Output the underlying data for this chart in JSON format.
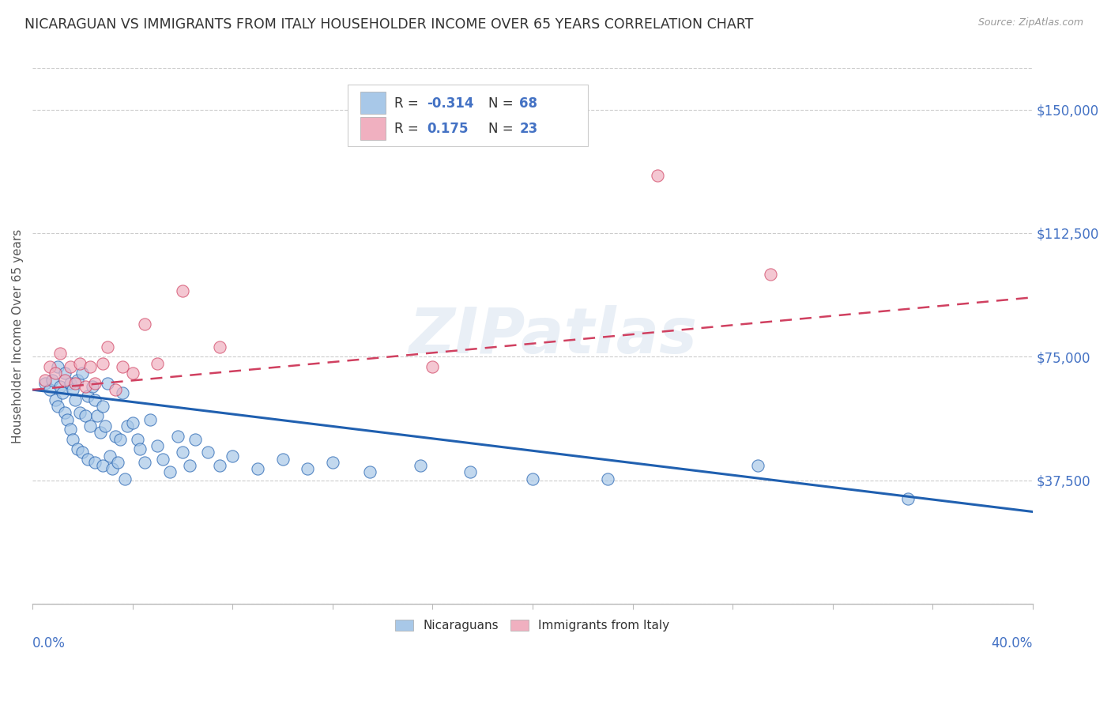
{
  "title": "NICARAGUAN VS IMMIGRANTS FROM ITALY HOUSEHOLDER INCOME OVER 65 YEARS CORRELATION CHART",
  "source": "Source: ZipAtlas.com",
  "ylabel": "Householder Income Over 65 years",
  "xlim": [
    0.0,
    0.4
  ],
  "ylim": [
    0,
    162500
  ],
  "yticks": [
    0,
    37500,
    75000,
    112500,
    150000
  ],
  "ytick_labels": [
    "",
    "$37,500",
    "$75,000",
    "$112,500",
    "$150,000"
  ],
  "color_blue": "#a8c8e8",
  "color_pink": "#f0b0c0",
  "line_color_blue": "#2060b0",
  "line_color_pink": "#d04060",
  "title_color": "#333333",
  "axis_label_color": "#4472c4",
  "watermark": "ZIPatlas",
  "blue_scatter_x": [
    0.005,
    0.007,
    0.008,
    0.009,
    0.01,
    0.01,
    0.011,
    0.012,
    0.013,
    0.013,
    0.014,
    0.015,
    0.015,
    0.016,
    0.016,
    0.017,
    0.018,
    0.018,
    0.019,
    0.02,
    0.02,
    0.021,
    0.022,
    0.022,
    0.023,
    0.024,
    0.025,
    0.025,
    0.026,
    0.027,
    0.028,
    0.028,
    0.029,
    0.03,
    0.031,
    0.032,
    0.033,
    0.034,
    0.035,
    0.036,
    0.037,
    0.038,
    0.04,
    0.042,
    0.043,
    0.045,
    0.047,
    0.05,
    0.052,
    0.055,
    0.058,
    0.06,
    0.063,
    0.065,
    0.07,
    0.075,
    0.08,
    0.09,
    0.1,
    0.11,
    0.12,
    0.135,
    0.155,
    0.175,
    0.2,
    0.23,
    0.29,
    0.35
  ],
  "blue_scatter_y": [
    67000,
    65000,
    68000,
    62000,
    72000,
    60000,
    66000,
    64000,
    58000,
    70000,
    56000,
    67000,
    53000,
    65000,
    50000,
    62000,
    68000,
    47000,
    58000,
    70000,
    46000,
    57000,
    63000,
    44000,
    54000,
    66000,
    62000,
    43000,
    57000,
    52000,
    60000,
    42000,
    54000,
    67000,
    45000,
    41000,
    51000,
    43000,
    50000,
    64000,
    38000,
    54000,
    55000,
    50000,
    47000,
    43000,
    56000,
    48000,
    44000,
    40000,
    51000,
    46000,
    42000,
    50000,
    46000,
    42000,
    45000,
    41000,
    44000,
    41000,
    43000,
    40000,
    42000,
    40000,
    38000,
    38000,
    42000,
    32000
  ],
  "pink_scatter_x": [
    0.005,
    0.007,
    0.009,
    0.011,
    0.013,
    0.015,
    0.017,
    0.019,
    0.021,
    0.023,
    0.025,
    0.028,
    0.03,
    0.033,
    0.036,
    0.04,
    0.045,
    0.05,
    0.06,
    0.075,
    0.16,
    0.25,
    0.295
  ],
  "pink_scatter_y": [
    68000,
    72000,
    70000,
    76000,
    68000,
    72000,
    67000,
    73000,
    66000,
    72000,
    67000,
    73000,
    78000,
    65000,
    72000,
    70000,
    85000,
    73000,
    95000,
    78000,
    72000,
    130000,
    100000
  ],
  "blue_line_x0": 0.0,
  "blue_line_y0": 65000,
  "blue_line_x1": 0.4,
  "blue_line_y1": 28000,
  "pink_line_x0": 0.0,
  "pink_line_y0": 65000,
  "pink_line_x1": 0.4,
  "pink_line_y1": 93000
}
